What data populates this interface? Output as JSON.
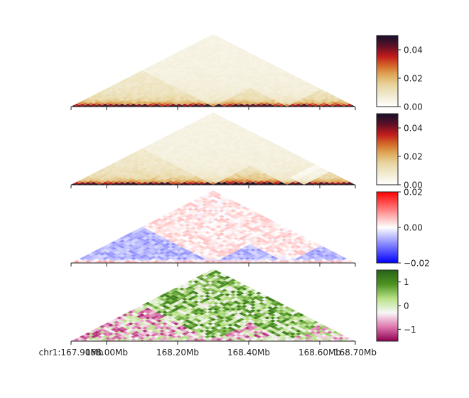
{
  "chart_data": [
    {
      "type": "heatmap",
      "panel": "contact-map-1",
      "title": "",
      "xlabel": "",
      "ylabel": "",
      "region": {
        "chrom": "chr1",
        "start_mb": 167.9,
        "end_mb": 168.7
      },
      "colormap": [
        "#ffffff",
        "#f2ecd4",
        "#e9d9a8",
        "#e0b060",
        "#d46a28",
        "#c0181c",
        "#5a1028",
        "#15102a"
      ],
      "colorbar": {
        "min": 0.0,
        "max": 0.05,
        "ticks": [
          0.0,
          0.02,
          0.04
        ],
        "tick_labels": [
          "0.00",
          "0.02",
          "0.04"
        ]
      },
      "domains_mb": [
        [
          167.9,
          168.1
        ],
        [
          168.1,
          168.4
        ],
        [
          168.4,
          168.7
        ]
      ]
    },
    {
      "type": "heatmap",
      "panel": "contact-map-2",
      "title": "",
      "xlabel": "",
      "ylabel": "",
      "region": {
        "chrom": "chr1",
        "start_mb": 167.9,
        "end_mb": 168.7
      },
      "colormap": [
        "#ffffff",
        "#f2ecd4",
        "#e9d9a8",
        "#e0b060",
        "#d46a28",
        "#c0181c",
        "#5a1028",
        "#15102a"
      ],
      "colorbar": {
        "min": 0.0,
        "max": 0.05,
        "ticks": [
          0.0,
          0.02,
          0.04
        ],
        "tick_labels": [
          "0.00",
          "0.02",
          "0.04"
        ]
      },
      "domains_mb": [
        [
          167.9,
          168.1
        ],
        [
          168.1,
          168.4
        ],
        [
          168.4,
          168.7
        ]
      ]
    },
    {
      "type": "heatmap",
      "panel": "difference-map",
      "title": "",
      "xlabel": "",
      "ylabel": "",
      "region": {
        "chrom": "chr1",
        "start_mb": 167.9,
        "end_mb": 168.7
      },
      "colormap": [
        "#0000ff",
        "#ffffff",
        "#ff0000"
      ],
      "colorbar": {
        "min": -0.02,
        "max": 0.02,
        "ticks": [
          -0.02,
          0.0,
          0.02
        ],
        "tick_labels": [
          "−0.02",
          "0.00",
          "0.02"
        ]
      }
    },
    {
      "type": "heatmap",
      "panel": "log-ratio-map",
      "title": "",
      "xlabel": "",
      "ylabel": "",
      "region": {
        "chrom": "chr1",
        "start_mb": 167.9,
        "end_mb": 168.7
      },
      "colormap": [
        "#8e0152",
        "#de77ae",
        "#f7f7f7",
        "#b8e186",
        "#4d9221",
        "#276419"
      ],
      "colorbar": {
        "min": -1.5,
        "max": 1.5,
        "ticks": [
          -1,
          0,
          1
        ],
        "tick_labels": [
          "−1",
          "0",
          "1"
        ]
      }
    }
  ],
  "x_axis": {
    "ticks_mb": [
      167.9,
      168.0,
      168.2,
      168.4,
      168.6,
      168.7
    ],
    "tick_labels": [
      "chr1:167.90Mb",
      "168.00Mb",
      "168.20Mb",
      "168.40Mb",
      "168.60Mb",
      "168.70Mb"
    ]
  }
}
